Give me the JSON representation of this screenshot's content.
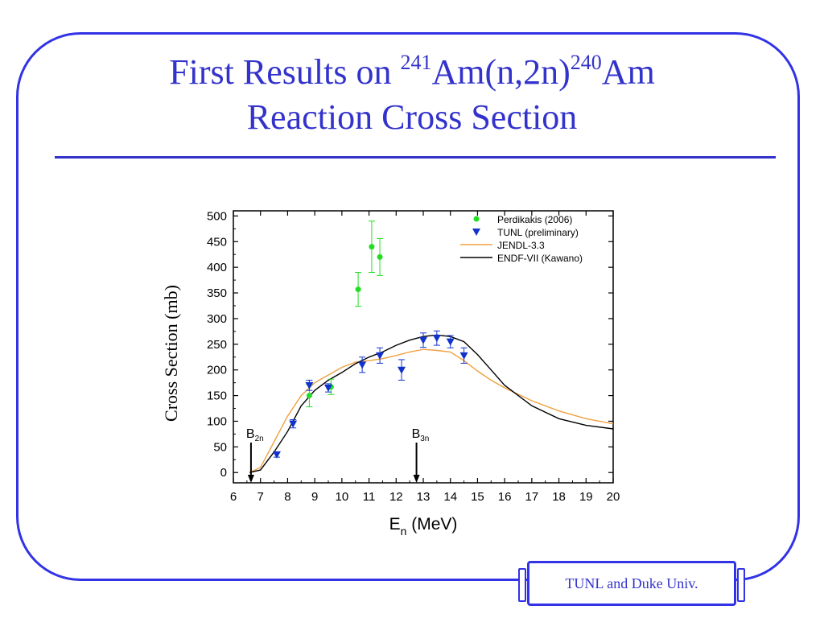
{
  "slide": {
    "title_parts": {
      "a": "First Results on ",
      "sup1": "241",
      "b": "Am(n,2n)",
      "sup2": "240",
      "c": "Am",
      "line2": "Reaction Cross Section"
    },
    "footer": "TUNL and Duke Univ.",
    "colors": {
      "frame": "#3333e6",
      "title": "#3333cc"
    }
  },
  "chart_data": {
    "type": "scatter",
    "xlabel": "E",
    "xlabel_sub": "n",
    "xlabel_unit": " (MeV)",
    "ylabel": "Cross Section (mb)",
    "xlim": [
      6,
      20
    ],
    "ylim": [
      -20,
      510
    ],
    "xticks": [
      6,
      7,
      8,
      9,
      10,
      11,
      12,
      13,
      14,
      15,
      16,
      17,
      18,
      19,
      20
    ],
    "yticks": [
      0,
      50,
      100,
      150,
      200,
      250,
      300,
      350,
      400,
      450,
      500
    ],
    "legend_position": "top-right",
    "series": [
      {
        "name": "Perdikakis (2006)",
        "kind": "points",
        "marker": "circle",
        "color": "#22dd22",
        "x": [
          8.8,
          9.6,
          10.6,
          11.1,
          11.4
        ],
        "y": [
          150,
          167,
          357,
          440,
          420
        ],
        "err": [
          22,
          15,
          33,
          50,
          36
        ]
      },
      {
        "name": "TUNL (preliminary)",
        "kind": "points",
        "marker": "triangle-down",
        "color": "#1133cc",
        "x": [
          7.6,
          8.2,
          8.8,
          9.5,
          10.75,
          11.4,
          12.2,
          13.0,
          13.5,
          14.0,
          14.5
        ],
        "y": [
          35,
          95,
          170,
          165,
          210,
          228,
          200,
          258,
          262,
          255,
          228
        ],
        "err": [
          5,
          8,
          10,
          8,
          15,
          15,
          20,
          14,
          14,
          12,
          15
        ]
      },
      {
        "name": "JENDL-3.3",
        "kind": "line",
        "color": "#f0a040",
        "x": [
          6.6,
          7.0,
          7.5,
          8.0,
          8.5,
          9.0,
          9.5,
          10.0,
          10.5,
          11.0,
          11.5,
          12.0,
          12.5,
          13.0,
          13.5,
          14.0,
          14.5,
          15.0,
          15.5,
          16.0,
          17.0,
          18.0,
          19.0,
          20.0
        ],
        "y": [
          0,
          10,
          60,
          110,
          150,
          175,
          190,
          205,
          215,
          218,
          222,
          228,
          235,
          240,
          238,
          235,
          218,
          198,
          180,
          165,
          140,
          120,
          105,
          95
        ]
      },
      {
        "name": "ENDF-VII (Kawano)",
        "kind": "line",
        "color": "#000000",
        "x": [
          6.6,
          7.0,
          7.5,
          8.0,
          8.5,
          9.0,
          9.5,
          10.0,
          10.5,
          11.0,
          11.5,
          12.0,
          12.5,
          13.0,
          13.5,
          14.0,
          14.5,
          15.0,
          15.5,
          16.0,
          17.0,
          18.0,
          19.0,
          20.0
        ],
        "y": [
          0,
          5,
          40,
          80,
          130,
          160,
          180,
          195,
          212,
          225,
          235,
          248,
          258,
          265,
          268,
          265,
          255,
          230,
          200,
          170,
          130,
          105,
          92,
          85
        ]
      }
    ],
    "annotations": [
      {
        "label": "B",
        "sub": "2n",
        "x": 6.65
      },
      {
        "label": "B",
        "sub": "3n",
        "x": 12.75
      }
    ]
  }
}
